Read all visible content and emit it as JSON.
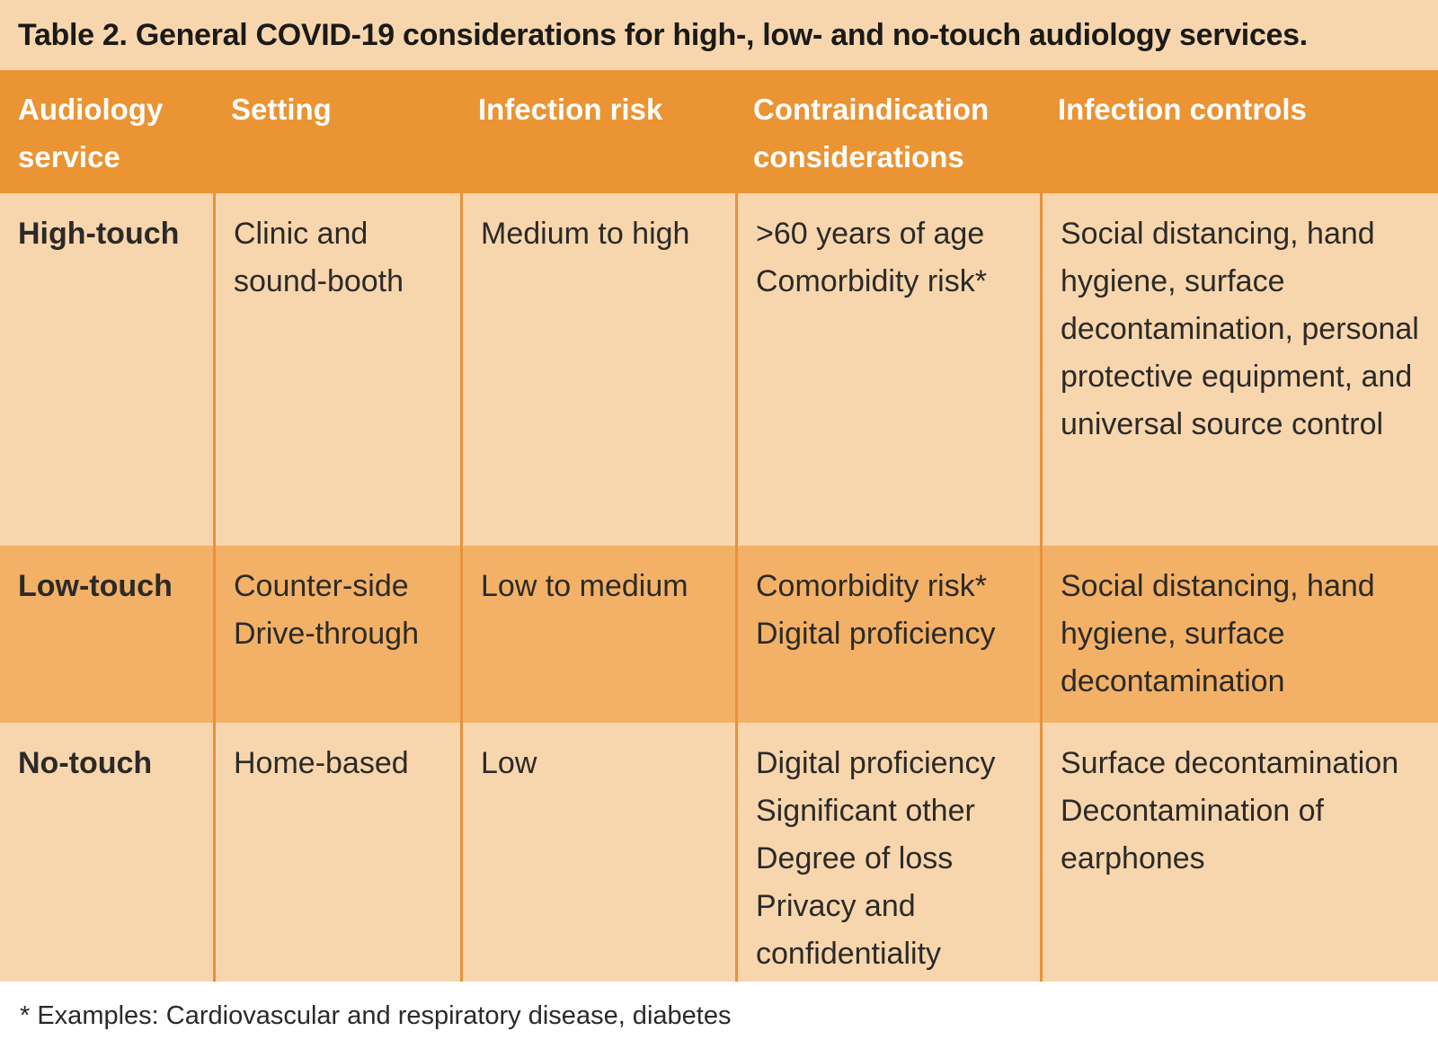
{
  "table": {
    "title": "Table 2. General COVID-19 considerations for high-, low- and no-touch audiology services.",
    "columns": [
      "Audiology service",
      "Setting",
      "Infection risk",
      "Contraindication considerations",
      "Infection controls"
    ],
    "rows": [
      {
        "service": "High-touch",
        "setting": [
          "Clinic and sound-booth"
        ],
        "infection_risk": "Medium to high",
        "contraindication_considerations": [
          ">60 years of age",
          "Comorbidity risk*"
        ],
        "infection_controls": [
          "Social distancing, hand hygiene, surface decontamination, personal protective equipment, and universal source control"
        ]
      },
      {
        "service": "Low-touch",
        "setting": [
          "Counter-side",
          "Drive-through"
        ],
        "infection_risk": "Low to medium",
        "contraindication_considerations": [
          "Comorbidity risk*",
          "Digital proficiency"
        ],
        "infection_controls": [
          "Social distancing, hand hygiene, surface decontamination"
        ]
      },
      {
        "service": "No-touch",
        "setting": [
          "Home-based"
        ],
        "infection_risk": "Low",
        "contraindication_considerations": [
          "Digital proficiency",
          "Significant other",
          "Degree of loss",
          "Privacy and confidentiality"
        ],
        "infection_controls": [
          "Surface decontamination",
          "Decontamination of earphones"
        ]
      }
    ],
    "footnote": "* Examples: Cardiovascular and respiratory disease, diabetes"
  },
  "colors": {
    "header_background": "#EA9433",
    "row_light": "#F8D6AD",
    "row_medium": "#F2B166",
    "border": "#E8913C",
    "header_text": "#FFFFFF",
    "body_text": "#2B2A28",
    "title_text": "#1A1A18",
    "page_background": "#FFFFFF"
  }
}
